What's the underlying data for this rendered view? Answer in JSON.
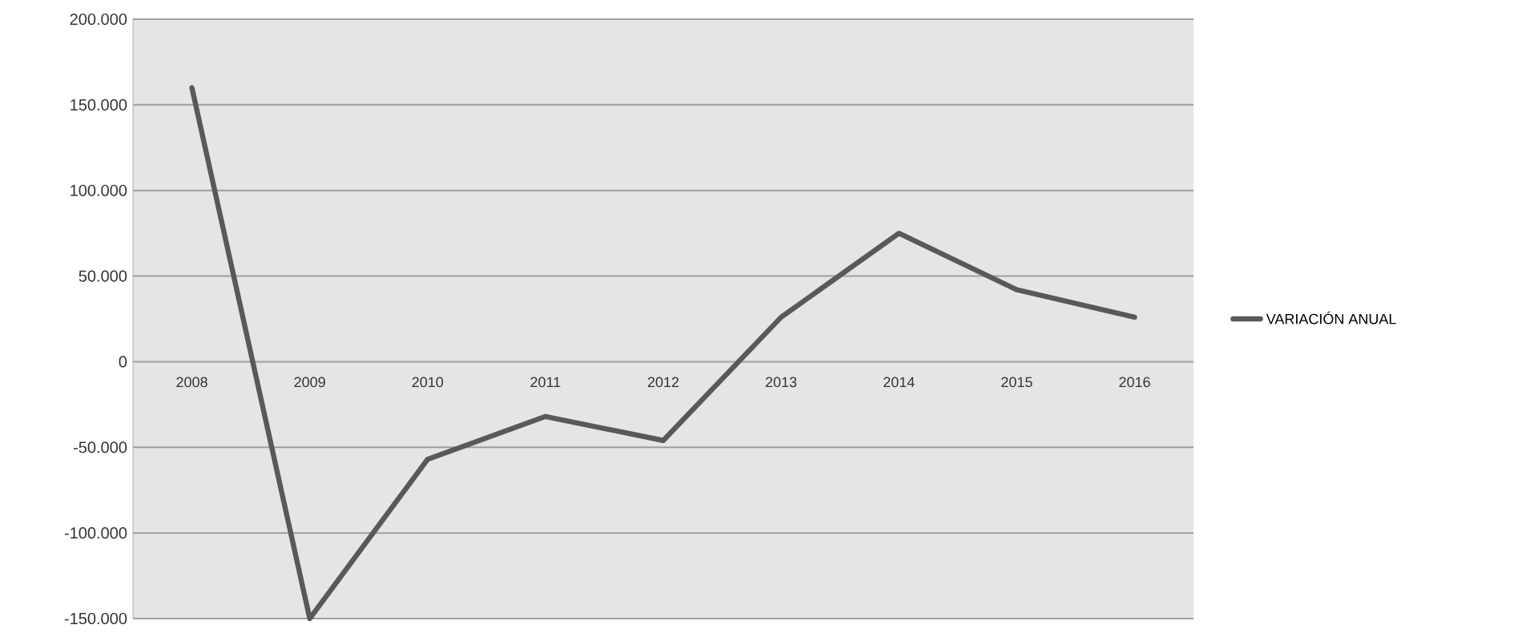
{
  "chart_data": {
    "type": "line",
    "categories": [
      "2008",
      "2009",
      "2010",
      "2011",
      "2012",
      "2013",
      "2014",
      "2015",
      "2016"
    ],
    "series": [
      {
        "name": "VARIACIÓN ANUAL",
        "color": "#595959",
        "values": [
          160000,
          -150000,
          -57000,
          -32000,
          -46000,
          26000,
          75000,
          42000,
          26000
        ]
      }
    ],
    "ylim": [
      -150000,
      200000
    ],
    "yticks": [
      {
        "value": -150000,
        "label": "-150.000"
      },
      {
        "value": -100000,
        "label": "-100.000"
      },
      {
        "value": -50000,
        "label": "-50.000"
      },
      0,
      {
        "value": 50000,
        "label": "50.000"
      },
      {
        "value": 100000,
        "label": "100.000"
      },
      {
        "value": 150000,
        "label": "150.000"
      },
      {
        "value": 200000,
        "label": "200.000"
      }
    ],
    "grid": "y",
    "legend": "right",
    "marker": "none",
    "line_style": "solid"
  }
}
